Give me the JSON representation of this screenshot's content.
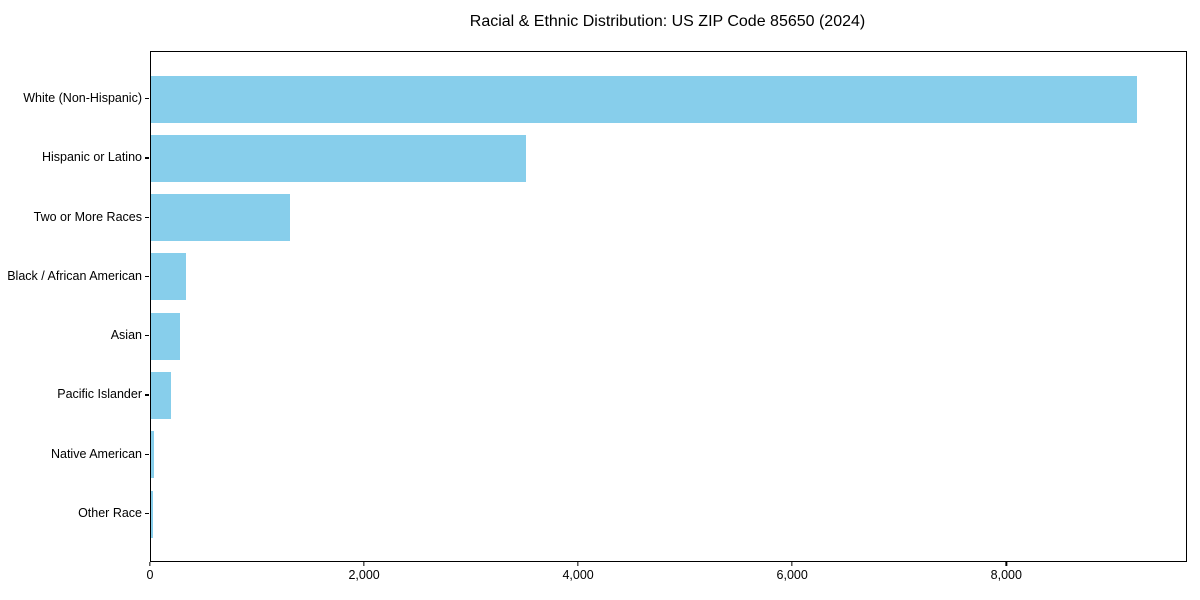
{
  "chart_data": {
    "type": "bar",
    "orientation": "horizontal",
    "title": "Racial & Ethnic Distribution: US ZIP Code 85650 (2024)",
    "categories": [
      "White (Non-Hispanic)",
      "Hispanic or Latino",
      "Two or More Races",
      "Black / African American",
      "Asian",
      "Pacific Islander",
      "Native American",
      "Other Race"
    ],
    "values": [
      9215,
      3505,
      1300,
      330,
      275,
      185,
      28,
      20
    ],
    "xlabel": "",
    "ylabel": "",
    "xlim": [
      0,
      9670
    ],
    "x_ticks": [
      0,
      2000,
      4000,
      6000,
      8000
    ],
    "x_tick_labels": [
      "0",
      "2,000",
      "4,000",
      "6,000",
      "8,000"
    ],
    "bar_color": "#87CEEB",
    "background_color": "#FFFFFF",
    "axis_color": "#000000",
    "grid": false,
    "legend": null
  }
}
